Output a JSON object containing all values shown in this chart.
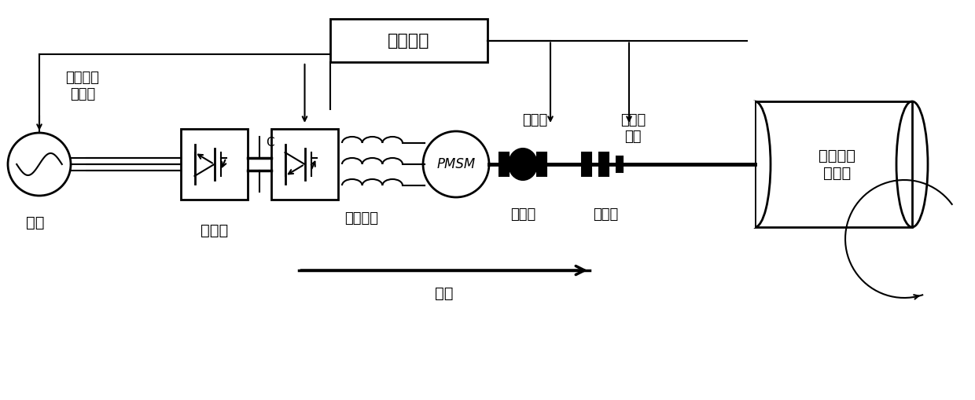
{
  "bg_color": "#ffffff",
  "line_color": "#000000",
  "labels": {
    "grid": "电网",
    "pmsm_label": "永磁同步\n电动机",
    "inverter": "逆变器",
    "control": "控制系统",
    "encoder": "编码器",
    "brake": "电磁制\n动器",
    "filter": "电抗滤波",
    "coupling1": "联轴器",
    "coupling2": "联轴器",
    "storage_box": "机械弹性\n储能箱",
    "energy": "储能",
    "pmsm": "PMSM",
    "cap": "C"
  }
}
